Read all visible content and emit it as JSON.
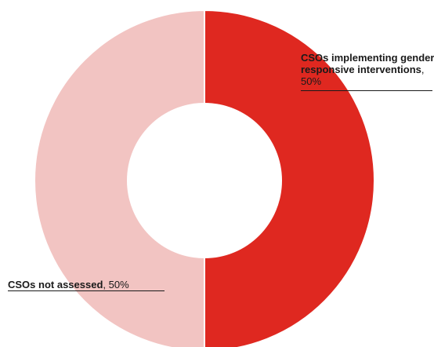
{
  "chart_data": {
    "type": "pie",
    "donut": true,
    "slices": [
      {
        "label": "CSOs implementing gender responsive interventions",
        "value": 50,
        "value_text": "50%",
        "color": "#df2820"
      },
      {
        "label": "CSOs not assessed",
        "value": 50,
        "value_text": "50%",
        "color": "#f2c4c2"
      }
    ],
    "separator_color": "#ffffff",
    "legend": "none"
  }
}
